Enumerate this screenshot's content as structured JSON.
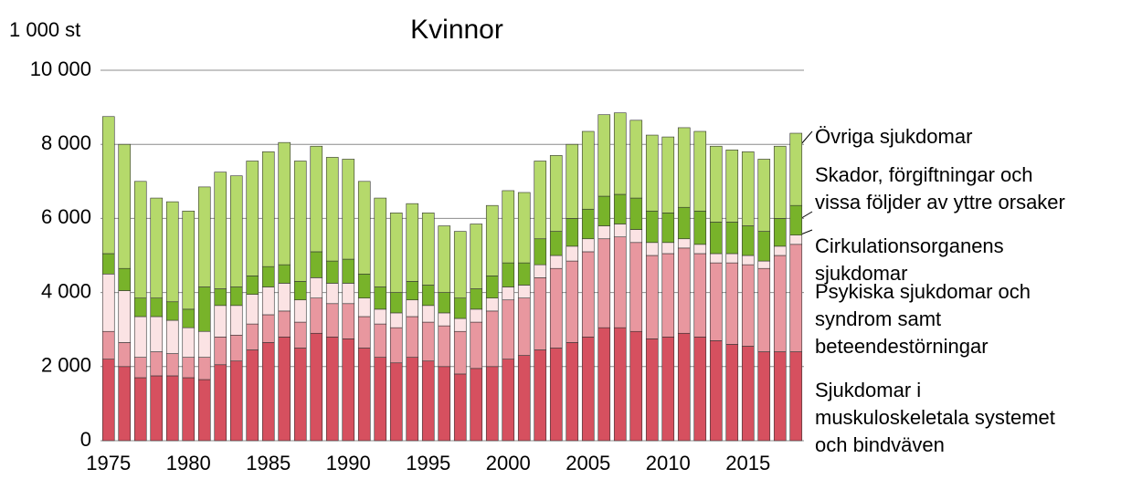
{
  "chart_data": {
    "type": "stacked_bar",
    "title": "Kvinnor",
    "y_label": "1 000 st",
    "categories": [
      "1975",
      null,
      null,
      null,
      null,
      "1980",
      null,
      null,
      null,
      null,
      "1985",
      null,
      null,
      null,
      null,
      "1990",
      null,
      null,
      null,
      null,
      "1995",
      null,
      null,
      null,
      null,
      "2000",
      null,
      null,
      null,
      null,
      "2005",
      null,
      null,
      null,
      null,
      "2010",
      null,
      null,
      null,
      null,
      "2015",
      null,
      null,
      null
    ],
    "ylim": [
      0,
      10000
    ],
    "yticks": [
      0,
      {
        "value": 2000,
        "label": "2 000"
      },
      {
        "value": 4000,
        "label": "4 000"
      },
      {
        "value": 6000,
        "label": "6 000"
      },
      {
        "value": 8000,
        "label": "8 000"
      },
      {
        "value": 10000,
        "label": "10 000"
      }
    ],
    "grid": true,
    "series": [
      {
        "name": "Sjukdomar i muskuloskeletala systemet och bindväven",
        "color": "#d6505f",
        "values": [
          2200,
          2000,
          1700,
          1750,
          1750,
          1700,
          1650,
          2050,
          2150,
          2450,
          2650,
          2800,
          2500,
          2900,
          2800,
          2750,
          2500,
          2250,
          2100,
          2250,
          2150,
          2000,
          1800,
          1950,
          2000,
          2200,
          2300,
          2450,
          2500,
          2650,
          2800,
          3050,
          3050,
          2950,
          2750,
          2800,
          2900,
          2800,
          2700,
          2600,
          2550,
          2400,
          2400,
          2400
        ]
      },
      {
        "name": "Psykiska sjukdomar och syndrom samt beteendestörningar",
        "color": "#e8979f",
        "values": [
          750,
          650,
          550,
          650,
          600,
          550,
          600,
          750,
          700,
          700,
          750,
          700,
          700,
          950,
          900,
          950,
          850,
          900,
          950,
          1100,
          1050,
          1100,
          1150,
          1250,
          1500,
          1600,
          1550,
          1950,
          2150,
          2200,
          2300,
          2400,
          2450,
          2400,
          2250,
          2250,
          2300,
          2250,
          2100,
          2200,
          2200,
          2250,
          2600,
          2900
        ]
      },
      {
        "name": "Cirkulationsorganens sjukdomar",
        "color": "#fbe3e4",
        "values": [
          1550,
          1400,
          1100,
          950,
          900,
          800,
          700,
          850,
          800,
          800,
          750,
          750,
          600,
          550,
          550,
          550,
          500,
          400,
          400,
          450,
          450,
          350,
          350,
          350,
          350,
          350,
          350,
          350,
          350,
          400,
          350,
          350,
          350,
          350,
          350,
          300,
          250,
          250,
          250,
          250,
          250,
          200,
          250,
          250
        ]
      },
      {
        "name": "Skador, förgiftningar och vissa följder av yttre orsaker",
        "color": "#78b32a",
        "values": [
          550,
          600,
          500,
          500,
          500,
          500,
          1200,
          450,
          500,
          500,
          550,
          500,
          500,
          700,
          600,
          650,
          650,
          600,
          550,
          500,
          550,
          550,
          550,
          550,
          600,
          650,
          600,
          700,
          650,
          750,
          800,
          800,
          800,
          850,
          850,
          800,
          850,
          900,
          850,
          850,
          800,
          800,
          750,
          800
        ]
      },
      {
        "name": "Övriga sjukdomar",
        "color": "#b5d96b",
        "values": [
          3700,
          3350,
          3150,
          2700,
          2700,
          2650,
          2700,
          3150,
          3000,
          3100,
          3100,
          3300,
          3250,
          2850,
          2800,
          2700,
          2500,
          2400,
          2150,
          2100,
          1950,
          1800,
          1800,
          1750,
          1900,
          1950,
          1900,
          2100,
          2050,
          2000,
          2100,
          2200,
          2200,
          2100,
          2050,
          2050,
          2150,
          2150,
          2050,
          1950,
          2000,
          1950,
          1950,
          1950
        ]
      }
    ]
  }
}
